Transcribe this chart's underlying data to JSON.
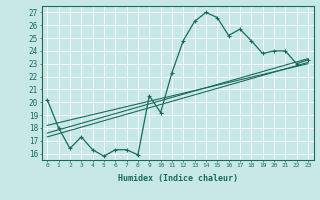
{
  "title": "",
  "xlabel": "Humidex (Indice chaleur)",
  "background_color": "#c8e8e8",
  "grid_color": "#ffffff",
  "line_color": "#1a6b5a",
  "xlim": [
    -0.5,
    23.5
  ],
  "ylim": [
    15.5,
    27.5
  ],
  "yticks": [
    16,
    17,
    18,
    19,
    20,
    21,
    22,
    23,
    24,
    25,
    26,
    27
  ],
  "xticks": [
    0,
    1,
    2,
    3,
    4,
    5,
    6,
    7,
    8,
    9,
    10,
    11,
    12,
    13,
    14,
    15,
    16,
    17,
    18,
    19,
    20,
    21,
    22,
    23
  ],
  "main_curve_x": [
    0,
    1,
    2,
    3,
    4,
    5,
    6,
    7,
    8,
    9,
    10,
    11,
    12,
    13,
    14,
    15,
    16,
    17,
    18,
    19,
    20,
    21,
    22,
    23
  ],
  "main_curve_y": [
    20.2,
    18.0,
    16.4,
    17.3,
    16.3,
    15.8,
    16.3,
    16.3,
    15.9,
    20.5,
    19.2,
    22.3,
    24.8,
    26.3,
    27.0,
    26.6,
    25.2,
    25.7,
    24.8,
    23.8,
    24.0,
    24.0,
    23.0,
    23.3
  ],
  "line1_x": [
    0,
    23
  ],
  "line1_y": [
    17.6,
    23.4
  ],
  "line2_x": [
    0,
    23
  ],
  "line2_y": [
    17.3,
    23.1
  ],
  "line3_x": [
    0,
    23
  ],
  "line3_y": [
    18.2,
    23.0
  ]
}
